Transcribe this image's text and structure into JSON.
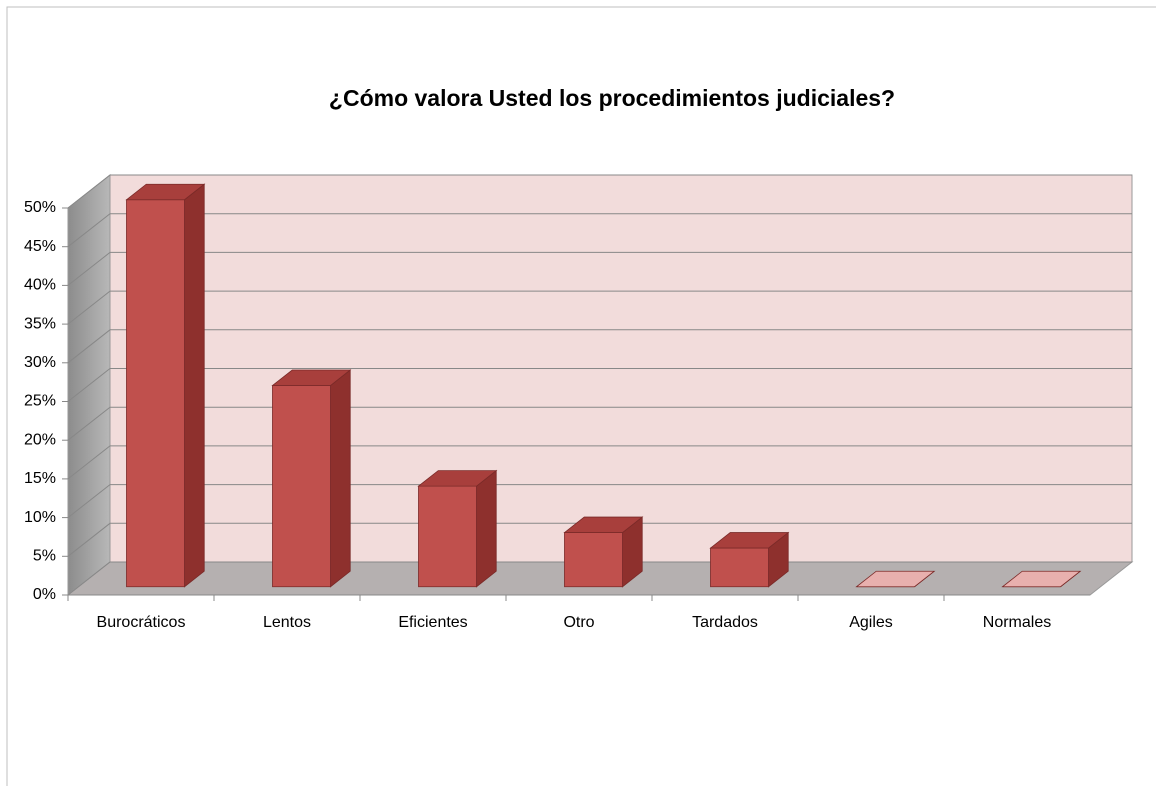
{
  "chart_data": {
    "type": "bar3d",
    "title": "¿Cómo valora Usted los procedimientos judiciales?",
    "categories": [
      "Burocráticos",
      "Lentos",
      "Eficientes",
      "Otro",
      "Tardados",
      "Agiles",
      "Normales"
    ],
    "values": [
      50,
      26,
      13,
      7,
      5,
      0,
      0
    ],
    "color": "#c0504d",
    "ylim": [
      0,
      50
    ],
    "yticks": [
      {
        "value": 0,
        "label": "0%"
      },
      {
        "value": 5,
        "label": "5%"
      },
      {
        "value": 10,
        "label": "10%"
      },
      {
        "value": 15,
        "label": "15%"
      },
      {
        "value": 20,
        "label": "20%"
      },
      {
        "value": 25,
        "label": "25%"
      },
      {
        "value": 30,
        "label": "30%"
      },
      {
        "value": 35,
        "label": "35%"
      },
      {
        "value": 40,
        "label": "40%"
      },
      {
        "value": 45,
        "label": "45%"
      },
      {
        "value": 50,
        "label": "50%"
      }
    ],
    "grid": true
  }
}
